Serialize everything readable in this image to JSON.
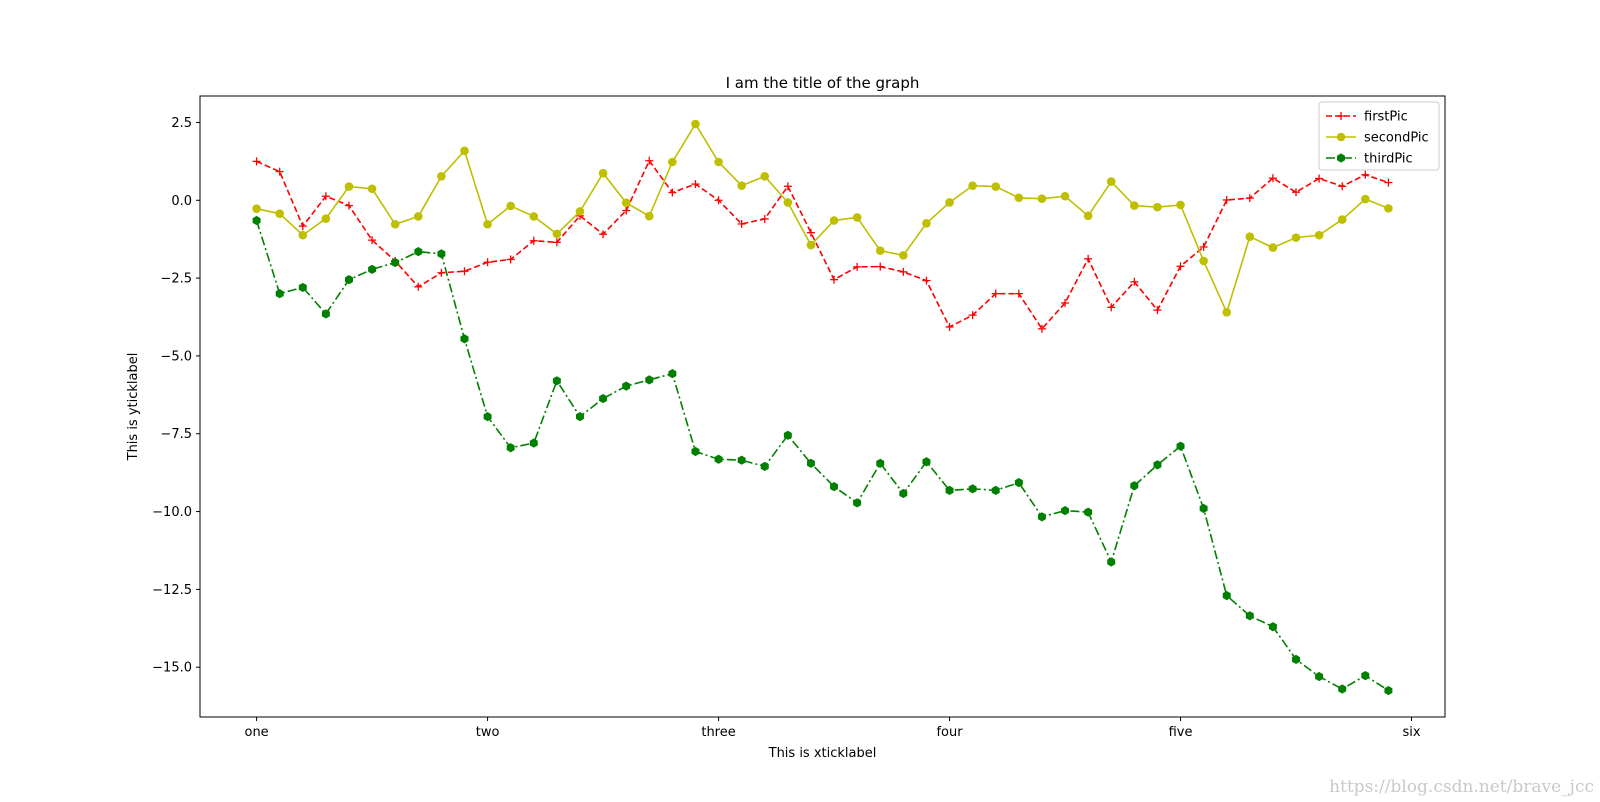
{
  "chart_data": {
    "type": "line",
    "title": "I am the title of the graph",
    "xlabel": "This is xticklabel",
    "ylabel": "This is yticklabel",
    "xlim": [
      -2.45,
      51.45
    ],
    "ylim": [
      -16.6,
      3.35
    ],
    "xticks": [
      {
        "x": 0,
        "label": "one"
      },
      {
        "x": 10,
        "label": "two"
      },
      {
        "x": 20,
        "label": "three"
      },
      {
        "x": 30,
        "label": "four"
      },
      {
        "x": 40,
        "label": "five"
      },
      {
        "x": 50,
        "label": "six"
      }
    ],
    "yticks": [
      {
        "y": 2.5,
        "label": "2.5"
      },
      {
        "y": 0,
        "label": "0.0"
      },
      {
        "y": -2.5,
        "label": "−2.5"
      },
      {
        "y": -5,
        "label": "−5.0"
      },
      {
        "y": -7.5,
        "label": "−7.5"
      },
      {
        "y": -10,
        "label": "−10.0"
      },
      {
        "y": -12.5,
        "label": "−12.5"
      },
      {
        "y": -15,
        "label": "−15.0"
      }
    ],
    "grid": false,
    "legend_position": "top-right",
    "x": [
      0,
      1,
      2,
      3,
      4,
      5,
      6,
      7,
      8,
      9,
      10,
      11,
      12,
      13,
      14,
      15,
      16,
      17,
      18,
      19,
      20,
      21,
      22,
      23,
      24,
      25,
      26,
      27,
      28,
      29,
      30,
      31,
      32,
      33,
      34,
      35,
      36,
      37,
      38,
      39,
      40,
      41,
      42,
      43,
      44,
      45,
      46,
      47,
      48,
      49
    ],
    "series": [
      {
        "name": "firstPic",
        "color": "#ff0000",
        "linestyle": "dashed",
        "marker": "plus",
        "values": [
          1.25,
          0.92,
          -0.83,
          0.13,
          -0.17,
          -1.28,
          -1.95,
          -2.78,
          -2.33,
          -2.28,
          -1.99,
          -1.9,
          -1.3,
          -1.35,
          -0.5,
          -1.09,
          -0.33,
          1.27,
          0.25,
          0.52,
          0.0,
          -0.76,
          -0.6,
          0.45,
          -1.04,
          -2.55,
          -2.14,
          -2.13,
          -2.3,
          -2.58,
          -4.07,
          -3.69,
          -3.0,
          -3.0,
          -4.13,
          -3.3,
          -1.88,
          -3.44,
          -2.62,
          -3.53,
          -2.12,
          -1.5,
          0.01,
          0.07,
          0.71,
          0.26,
          0.7,
          0.45,
          0.82,
          0.57
        ]
      },
      {
        "name": "secondPic",
        "color": "#bfbf00",
        "linestyle": "solid",
        "marker": "circle",
        "values": [
          -0.27,
          -0.43,
          -1.12,
          -0.59,
          0.44,
          0.37,
          -0.77,
          -0.52,
          0.77,
          1.59,
          -0.77,
          -0.18,
          -0.52,
          -1.08,
          -0.36,
          0.87,
          -0.08,
          -0.51,
          1.23,
          2.45,
          1.23,
          0.47,
          0.77,
          -0.07,
          -1.44,
          -0.65,
          -0.55,
          -1.62,
          -1.77,
          -0.74,
          -0.07,
          0.47,
          0.44,
          0.08,
          0.05,
          0.13,
          -0.5,
          0.6,
          -0.17,
          -0.22,
          -0.15,
          -1.95,
          -3.6,
          -1.17,
          -1.52,
          -1.2,
          -1.12,
          -0.62,
          0.04,
          -0.26
        ]
      },
      {
        "name": "thirdPic",
        "color": "#008000",
        "linestyle": "dashdot",
        "marker": "hexagon",
        "values": [
          -0.65,
          -3.0,
          -2.8,
          -3.65,
          -2.55,
          -2.22,
          -2.0,
          -1.65,
          -1.72,
          -4.45,
          -6.95,
          -7.95,
          -7.8,
          -5.8,
          -6.95,
          -6.37,
          -5.97,
          -5.77,
          -5.57,
          -8.07,
          -8.32,
          -8.35,
          -8.55,
          -7.55,
          -8.45,
          -9.2,
          -9.72,
          -8.45,
          -9.42,
          -8.4,
          -9.32,
          -9.27,
          -9.32,
          -9.07,
          -10.17,
          -9.97,
          -10.02,
          -11.62,
          -9.17,
          -8.5,
          -7.9,
          -9.9,
          -12.7,
          -13.35,
          -13.7,
          -14.75,
          -15.3,
          -15.7,
          -15.27,
          -15.75
        ]
      }
    ]
  },
  "watermark": "https://blog.csdn.net/brave_jcc"
}
